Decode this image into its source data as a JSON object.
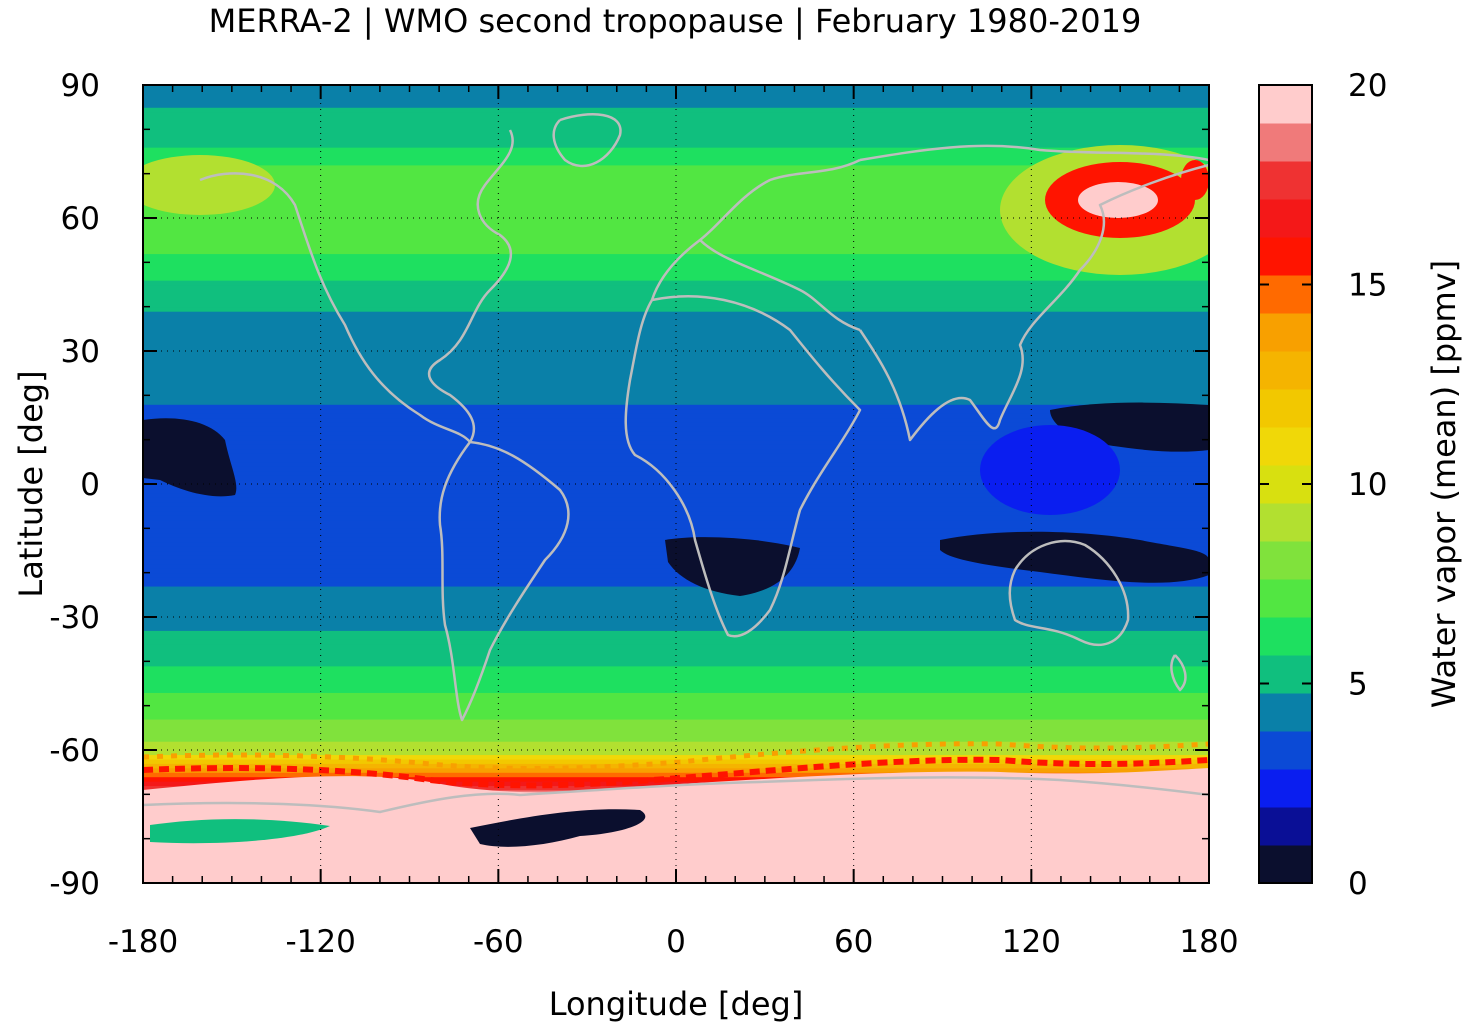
{
  "chart_data": {
    "type": "heatmap",
    "title": "MERRA-2 | WMO second tropopause | February 1980-2019",
    "xlabel": "Longitude [deg]",
    "ylabel": "Latitude [deg]",
    "xlim": [
      -180,
      180
    ],
    "ylim": [
      -90,
      90
    ],
    "x_ticks": [
      -180,
      -120,
      -60,
      0,
      60,
      120,
      180
    ],
    "y_ticks": [
      -90,
      -60,
      -30,
      0,
      30,
      60,
      90
    ],
    "x_tick_labels": [
      "-180",
      "-120",
      "-60",
      "0",
      "60",
      "120",
      "180"
    ],
    "y_tick_labels": [
      "-90",
      "-60",
      "-30",
      "0",
      "30",
      "60",
      "90"
    ],
    "grid": true,
    "colorbar": {
      "label": "Water vapor (mean) [ppmv]",
      "range": [
        0,
        20
      ],
      "ticks": [
        0,
        5,
        10,
        15,
        20
      ],
      "tick_labels": [
        "0",
        "5",
        "10",
        "15",
        "20"
      ],
      "colors": [
        "#0b0f2e",
        "#0a0f96",
        "#0a1ef0",
        "#0b4ad6",
        "#0a80a8",
        "#10bf7e",
        "#1ee060",
        "#52e642",
        "#80e23c",
        "#b2e030",
        "#d8e010",
        "#f0d808",
        "#f2c800",
        "#f5b400",
        "#f8a000",
        "#ff6a00",
        "#ff1400",
        "#f41818",
        "#ef3232",
        "#f07a7a",
        "#ffcccc"
      ]
    },
    "zonal_mean_profile": {
      "latitude": [
        -90,
        -80,
        -70,
        -65,
        -60,
        -55,
        -50,
        -45,
        -40,
        -30,
        -20,
        -15,
        -10,
        0,
        10,
        15,
        20,
        30,
        40,
        45,
        50,
        55,
        60,
        70,
        80,
        90
      ],
      "values": [
        20,
        20,
        19,
        14,
        9,
        8,
        7,
        6.5,
        5.5,
        4.5,
        3.5,
        3,
        3,
        3,
        3,
        3.5,
        4,
        4.5,
        4.8,
        5.5,
        6.5,
        7,
        7.5,
        7,
        5,
        4.5
      ]
    }
  }
}
